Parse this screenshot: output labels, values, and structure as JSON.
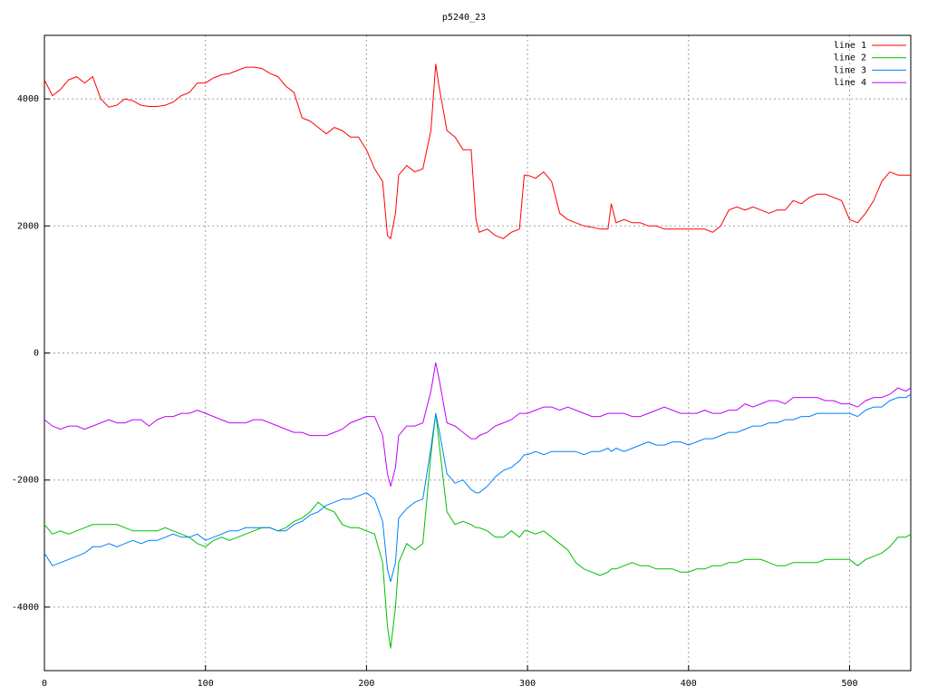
{
  "chart_data": {
    "type": "line",
    "title": "p5240_23",
    "x": [
      0,
      5,
      10,
      15,
      20,
      25,
      30,
      35,
      40,
      45,
      50,
      55,
      60,
      65,
      70,
      75,
      80,
      85,
      90,
      95,
      100,
      105,
      110,
      115,
      120,
      125,
      130,
      135,
      140,
      145,
      150,
      155,
      160,
      165,
      170,
      175,
      180,
      185,
      190,
      195,
      200,
      205,
      210,
      213,
      215,
      218,
      220,
      225,
      230,
      235,
      240,
      243,
      245,
      250,
      255,
      260,
      265,
      268,
      270,
      275,
      280,
      285,
      290,
      295,
      298,
      300,
      305,
      310,
      315,
      320,
      325,
      330,
      335,
      340,
      345,
      350,
      352,
      355,
      360,
      365,
      370,
      375,
      380,
      385,
      390,
      395,
      400,
      405,
      410,
      415,
      420,
      425,
      430,
      435,
      440,
      445,
      450,
      455,
      460,
      465,
      470,
      475,
      480,
      485,
      490,
      495,
      500,
      505,
      510,
      515,
      520,
      525,
      530,
      535,
      538
    ],
    "series": [
      {
        "name": "line 1",
        "color": "#ff0000",
        "values": [
          4300,
          4050,
          4150,
          4300,
          4350,
          4250,
          4350,
          4000,
          3870,
          3900,
          4000,
          3970,
          3900,
          3880,
          3880,
          3900,
          3950,
          4050,
          4100,
          4250,
          4250,
          4330,
          4380,
          4400,
          4450,
          4500,
          4500,
          4480,
          4400,
          4350,
          4200,
          4100,
          3700,
          3650,
          3550,
          3450,
          3550,
          3500,
          3400,
          3400,
          3200,
          2900,
          2700,
          1850,
          1800,
          2200,
          2800,
          2950,
          2850,
          2900,
          3500,
          4550,
          4200,
          3500,
          3400,
          3200,
          3200,
          2100,
          1900,
          1950,
          1850,
          1800,
          1900,
          1950,
          2800,
          2800,
          2750,
          2850,
          2700,
          2200,
          2100,
          2050,
          2000,
          1980,
          1950,
          1950,
          2350,
          2050,
          2100,
          2050,
          2050,
          2000,
          2000,
          1950,
          1950,
          1950,
          1950,
          1950,
          1950,
          1900,
          2000,
          2250,
          2300,
          2250,
          2300,
          2250,
          2200,
          2250,
          2250,
          2400,
          2350,
          2450,
          2500,
          2500,
          2450,
          2400,
          2100,
          2050,
          2200,
          2400,
          2700,
          2850,
          2800,
          2800,
          2800
        ]
      },
      {
        "name": "line 2",
        "color": "#00c000",
        "values": [
          -2700,
          -2850,
          -2800,
          -2850,
          -2800,
          -2750,
          -2700,
          -2700,
          -2700,
          -2700,
          -2750,
          -2800,
          -2800,
          -2800,
          -2800,
          -2750,
          -2800,
          -2850,
          -2900,
          -3000,
          -3050,
          -2950,
          -2900,
          -2950,
          -2900,
          -2850,
          -2800,
          -2750,
          -2750,
          -2800,
          -2750,
          -2650,
          -2600,
          -2500,
          -2350,
          -2450,
          -2500,
          -2700,
          -2750,
          -2750,
          -2800,
          -2850,
          -3300,
          -4300,
          -4650,
          -4000,
          -3300,
          -3000,
          -3100,
          -3000,
          -1600,
          -950,
          -1400,
          -2500,
          -2700,
          -2650,
          -2700,
          -2750,
          -2750,
          -2800,
          -2900,
          -2900,
          -2800,
          -2900,
          -2800,
          -2800,
          -2850,
          -2800,
          -2900,
          -3000,
          -3100,
          -3300,
          -3400,
          -3450,
          -3500,
          -3450,
          -3400,
          -3400,
          -3350,
          -3300,
          -3350,
          -3350,
          -3400,
          -3400,
          -3400,
          -3450,
          -3450,
          -3400,
          -3400,
          -3350,
          -3350,
          -3300,
          -3300,
          -3250,
          -3250,
          -3250,
          -3300,
          -3350,
          -3350,
          -3300,
          -3300,
          -3300,
          -3300,
          -3250,
          -3250,
          -3250,
          -3250,
          -3350,
          -3250,
          -3200,
          -3150,
          -3050,
          -2900,
          -2900,
          -2850
        ]
      },
      {
        "name": "line 3",
        "color": "#0080ff",
        "values": [
          -3150,
          -3350,
          -3300,
          -3250,
          -3200,
          -3150,
          -3050,
          -3050,
          -3000,
          -3050,
          -3000,
          -2950,
          -3000,
          -2950,
          -2950,
          -2900,
          -2850,
          -2900,
          -2900,
          -2850,
          -2950,
          -2900,
          -2850,
          -2800,
          -2800,
          -2750,
          -2750,
          -2750,
          -2750,
          -2800,
          -2800,
          -2700,
          -2650,
          -2550,
          -2500,
          -2400,
          -2350,
          -2300,
          -2300,
          -2250,
          -2200,
          -2300,
          -2650,
          -3400,
          -3600,
          -3300,
          -2600,
          -2450,
          -2350,
          -2300,
          -1500,
          -950,
          -1200,
          -1900,
          -2050,
          -2000,
          -2150,
          -2200,
          -2200,
          -2100,
          -1950,
          -1850,
          -1800,
          -1700,
          -1600,
          -1600,
          -1550,
          -1600,
          -1550,
          -1550,
          -1550,
          -1550,
          -1600,
          -1550,
          -1550,
          -1500,
          -1550,
          -1500,
          -1550,
          -1500,
          -1450,
          -1400,
          -1450,
          -1450,
          -1400,
          -1400,
          -1450,
          -1400,
          -1350,
          -1350,
          -1300,
          -1250,
          -1250,
          -1200,
          -1150,
          -1150,
          -1100,
          -1100,
          -1050,
          -1050,
          -1000,
          -1000,
          -950,
          -950,
          -950,
          -950,
          -950,
          -1000,
          -900,
          -850,
          -850,
          -750,
          -700,
          -700,
          -650
        ]
      },
      {
        "name": "line 4",
        "color": "#c000ff",
        "values": [
          -1050,
          -1150,
          -1200,
          -1150,
          -1150,
          -1200,
          -1150,
          -1100,
          -1050,
          -1100,
          -1100,
          -1050,
          -1050,
          -1150,
          -1050,
          -1000,
          -1000,
          -950,
          -950,
          -900,
          -950,
          -1000,
          -1050,
          -1100,
          -1100,
          -1100,
          -1050,
          -1050,
          -1100,
          -1150,
          -1200,
          -1250,
          -1250,
          -1300,
          -1300,
          -1300,
          -1250,
          -1200,
          -1100,
          -1050,
          -1000,
          -1000,
          -1300,
          -1900,
          -2100,
          -1800,
          -1300,
          -1150,
          -1150,
          -1100,
          -600,
          -150,
          -400,
          -1100,
          -1150,
          -1250,
          -1350,
          -1350,
          -1300,
          -1250,
          -1150,
          -1100,
          -1050,
          -950,
          -950,
          -950,
          -900,
          -850,
          -850,
          -900,
          -850,
          -900,
          -950,
          -1000,
          -1000,
          -950,
          -950,
          -950,
          -950,
          -1000,
          -1000,
          -950,
          -900,
          -850,
          -900,
          -950,
          -950,
          -950,
          -900,
          -950,
          -950,
          -900,
          -900,
          -800,
          -850,
          -800,
          -750,
          -750,
          -800,
          -700,
          -700,
          -700,
          -700,
          -750,
          -750,
          -800,
          -800,
          -850,
          -750,
          -700,
          -700,
          -650,
          -550,
          -600,
          -550
        ]
      }
    ],
    "xlim": [
      0,
      538
    ],
    "ylim": [
      -5000,
      5000
    ],
    "xticks": [
      0,
      100,
      200,
      300,
      400,
      500
    ],
    "yticks": [
      -4000,
      -2000,
      0,
      2000,
      4000
    ],
    "grid": true,
    "legend": "top-right"
  }
}
